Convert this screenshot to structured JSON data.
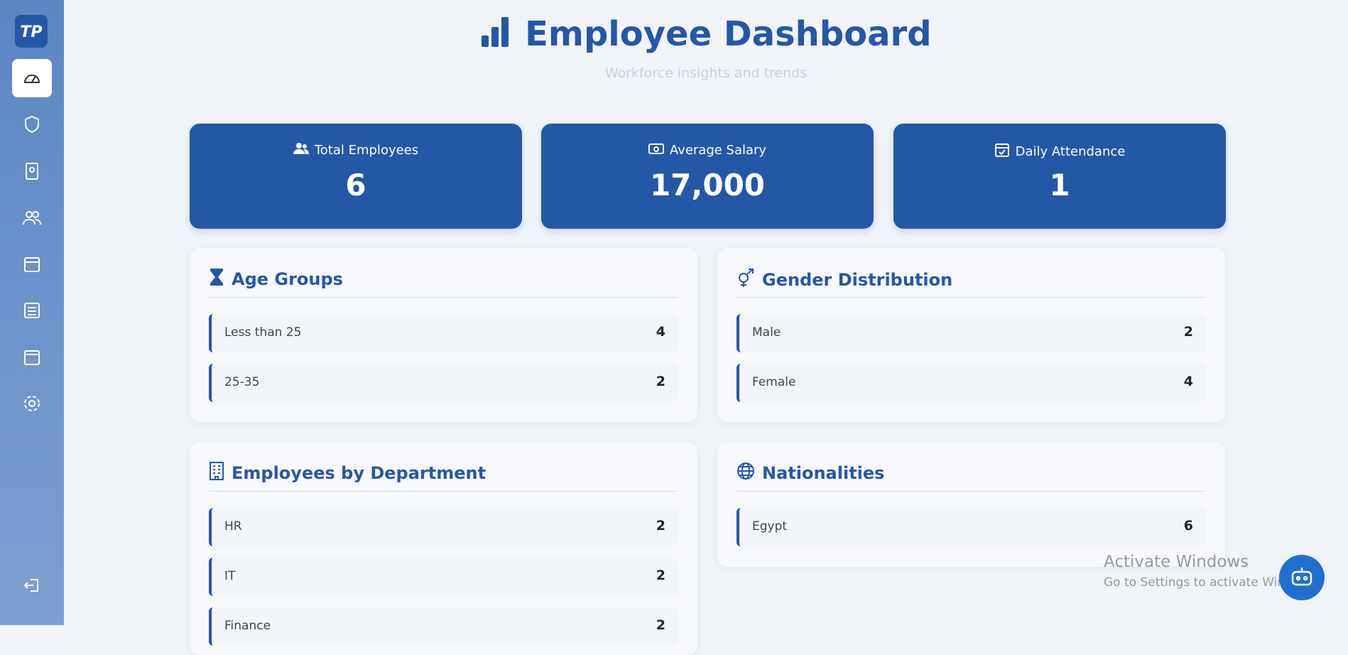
{
  "header": {
    "title": "Employee Dashboard",
    "subtitle": "Workforce insights and trends"
  },
  "stats": [
    {
      "label": "Total Employees",
      "value": 6
    },
    {
      "label": "Average Salary",
      "value": "17,000"
    },
    {
      "label": "Daily Attendance",
      "value": 1
    }
  ],
  "panels": [
    {
      "title": "Age Groups",
      "rows": [
        {
          "label": "Less than 25",
          "value": 4
        },
        {
          "label": "25-35",
          "value": 2
        }
      ]
    },
    {
      "title": "Gender Distribution",
      "rows": [
        {
          "label": "Male",
          "value": 2
        },
        {
          "label": "Female",
          "value": 4
        }
      ]
    },
    {
      "title": "Employees by Department",
      "rows": [
        {
          "label": "HR",
          "value": 2
        },
        {
          "label": "IT",
          "value": 2
        },
        {
          "label": "Finance",
          "value": 2
        }
      ]
    },
    {
      "title": "Nationalities",
      "rows": [
        {
          "label": "Egypt",
          "value": 6
        }
      ]
    }
  ],
  "watermark": {
    "title": "Activate Windows",
    "text": "Go to Settings to activate Windows."
  }
}
